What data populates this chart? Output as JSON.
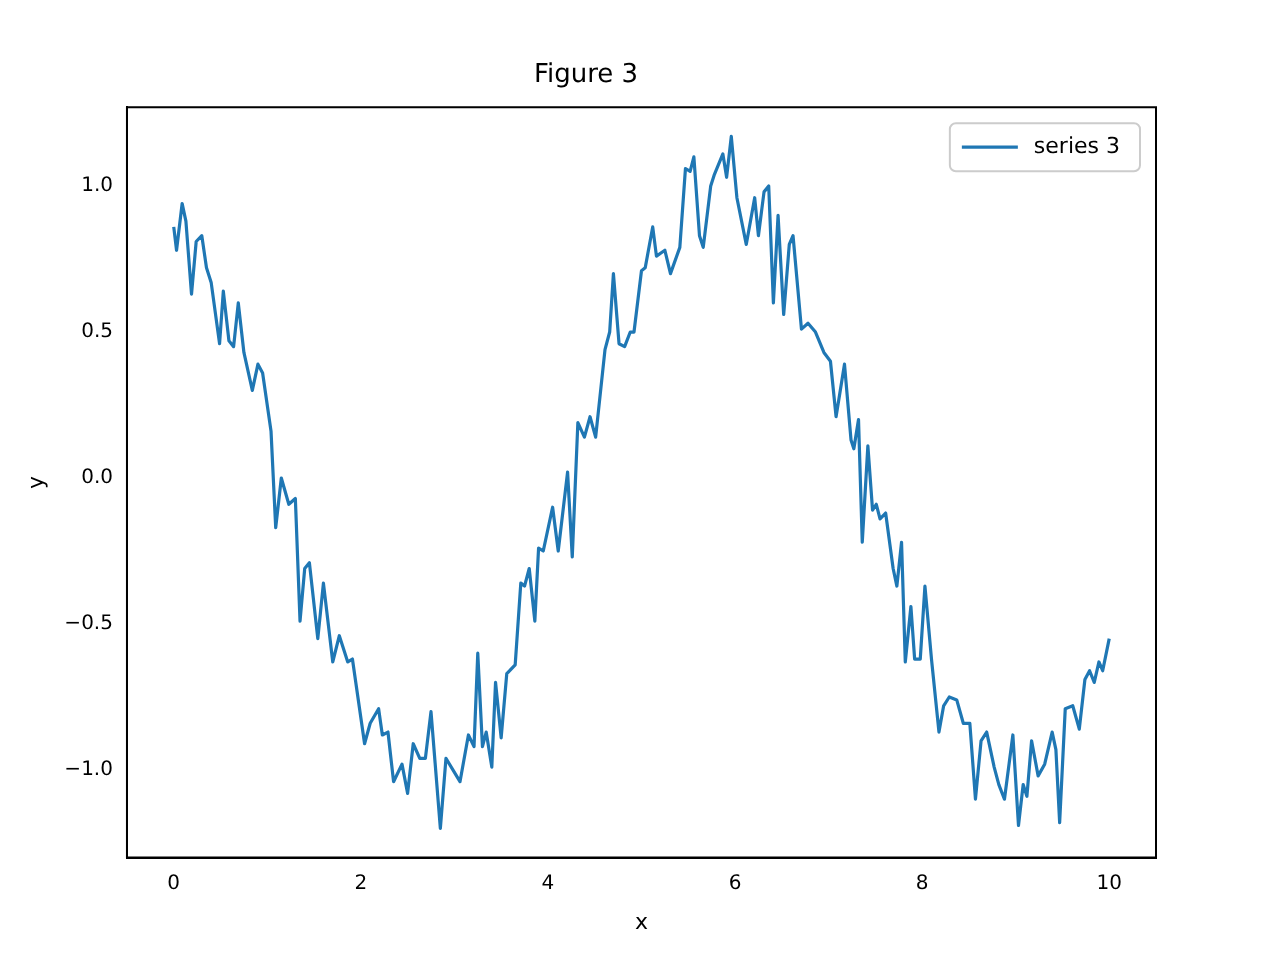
{
  "chart_data": {
    "type": "line",
    "title": "Figure 3",
    "xlabel": "x",
    "ylabel": "y",
    "x": [
      0,
      0.03,
      0.09,
      0.13,
      0.19,
      0.24,
      0.3,
      0.35,
      0.4,
      0.49,
      0.53,
      0.59,
      0.64,
      0.69,
      0.75,
      0.84,
      0.9,
      0.95,
      1.04,
      1.09,
      1.15,
      1.23,
      1.3,
      1.35,
      1.4,
      1.45,
      1.54,
      1.6,
      1.7,
      1.77,
      1.86,
      1.91,
      2.04,
      2.1,
      2.19,
      2.23,
      2.29,
      2.35,
      2.44,
      2.5,
      2.56,
      2.63,
      2.69,
      2.75,
      2.85,
      2.91,
      3.06,
      3.15,
      3.21,
      3.25,
      3.3,
      3.34,
      3.4,
      3.44,
      3.5,
      3.56,
      3.65,
      3.71,
      3.75,
      3.8,
      3.86,
      3.9,
      3.95,
      4.05,
      4.11,
      4.21,
      4.26,
      4.32,
      4.39,
      4.45,
      4.51,
      4.61,
      4.66,
      4.7,
      4.76,
      4.82,
      4.88,
      4.92,
      5,
      5.04,
      5.12,
      5.16,
      5.25,
      5.31,
      5.41,
      5.47,
      5.52,
      5.56,
      5.62,
      5.66,
      5.74,
      5.78,
      5.87,
      5.91,
      5.96,
      6.02,
      6.12,
      6.21,
      6.25,
      6.31,
      6.36,
      6.41,
      6.46,
      6.52,
      6.58,
      6.62,
      6.71,
      6.78,
      6.86,
      6.95,
      7.02,
      7.08,
      7.17,
      7.24,
      7.27,
      7.32,
      7.36,
      7.42,
      7.47,
      7.51,
      7.55,
      7.61,
      7.69,
      7.73,
      7.78,
      7.82,
      7.88,
      7.92,
      7.98,
      8.03,
      8.1,
      8.18,
      8.23,
      8.29,
      8.37,
      8.44,
      8.51,
      8.57,
      8.63,
      8.69,
      8.77,
      8.82,
      8.88,
      8.97,
      9.03,
      9.08,
      9.12,
      9.17,
      9.24,
      9.31,
      9.39,
      9.43,
      9.47,
      9.53,
      9.61,
      9.68,
      9.74,
      9.79,
      9.84,
      9.89,
      9.93,
      10
    ],
    "series": [
      {
        "name": "series 3",
        "color": "#1f77b4",
        "values": [
          0.86,
          0.78,
          0.94,
          0.88,
          0.63,
          0.81,
          0.83,
          0.72,
          0.67,
          0.46,
          0.64,
          0.47,
          0.45,
          0.6,
          0.43,
          0.3,
          0.39,
          0.36,
          0.16,
          -0.17,
          0,
          -0.09,
          -0.07,
          -0.49,
          -0.31,
          -0.29,
          -0.55,
          -0.36,
          -0.63,
          -0.54,
          -0.63,
          -0.62,
          -0.91,
          -0.84,
          -0.79,
          -0.88,
          -0.87,
          -1.04,
          -0.98,
          -1.08,
          -0.91,
          -0.96,
          -0.96,
          -0.8,
          -1.2,
          -0.96,
          -1.04,
          -0.88,
          -0.92,
          -0.6,
          -0.92,
          -0.87,
          -0.99,
          -0.7,
          -0.89,
          -0.67,
          -0.64,
          -0.36,
          -0.37,
          -0.31,
          -0.49,
          -0.24,
          -0.25,
          -0.1,
          -0.25,
          0.02,
          -0.27,
          0.19,
          0.14,
          0.21,
          0.14,
          0.44,
          0.5,
          0.7,
          0.46,
          0.45,
          0.5,
          0.5,
          0.71,
          0.72,
          0.86,
          0.76,
          0.78,
          0.7,
          0.79,
          1.06,
          1.05,
          1.1,
          0.83,
          0.79,
          1,
          1.04,
          1.11,
          1.03,
          1.17,
          0.96,
          0.8,
          0.96,
          0.83,
          0.98,
          1,
          0.6,
          0.9,
          0.56,
          0.8,
          0.83,
          0.51,
          0.53,
          0.5,
          0.43,
          0.4,
          0.21,
          0.39,
          0.13,
          0.1,
          0.2,
          -0.22,
          0.11,
          -0.11,
          -0.09,
          -0.14,
          -0.12,
          -0.31,
          -0.37,
          -0.22,
          -0.63,
          -0.44,
          -0.62,
          -0.62,
          -0.37,
          -0.62,
          -0.87,
          -0.78,
          -0.75,
          -0.76,
          -0.84,
          -0.84,
          -1.1,
          -0.9,
          -0.87,
          -0.99,
          -1.05,
          -1.1,
          -0.88,
          -1.19,
          -1.05,
          -1.09,
          -0.9,
          -1.02,
          -0.98,
          -0.87,
          -0.93,
          -1.18,
          -0.79,
          -0.78,
          -0.86,
          -0.69,
          -0.66,
          -0.7,
          -0.63,
          -0.66,
          -0.55
        ]
      }
    ],
    "xlim": [
      -0.5,
      10.5
    ],
    "xticks": [
      0,
      2,
      4,
      6,
      8,
      10
    ],
    "ylim": [
      -1.3,
      1.27
    ],
    "yticks": [
      {
        "value": -1,
        "label": "−1.0"
      },
      {
        "value": -0.5,
        "label": "−0.5"
      },
      {
        "value": 0,
        "label": "0.0"
      },
      {
        "value": 0.5,
        "label": "0.5"
      },
      {
        "value": 1,
        "label": "1.0"
      }
    ],
    "grid": false,
    "legend": "top right",
    "marker": "none",
    "line_style": "solid"
  }
}
